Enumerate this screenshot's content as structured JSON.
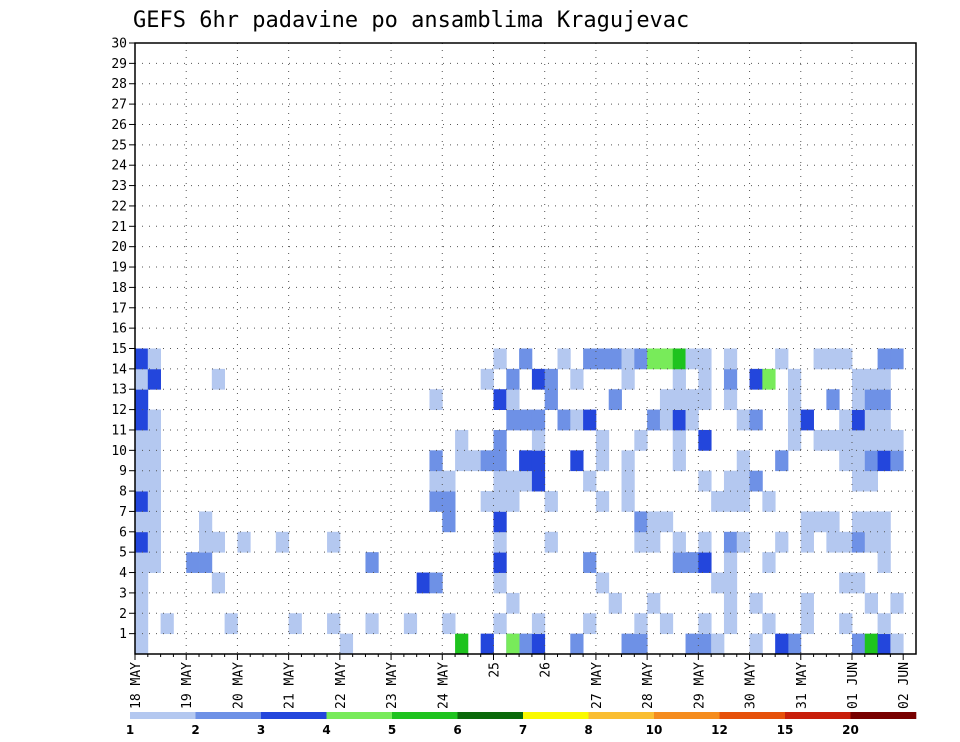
{
  "chart_data": {
    "type": "heatmap",
    "title": "GEFS 6hr padavine po ansamblima Kragujevac",
    "xlabel": "",
    "ylabel": "",
    "x_tick_labels": [
      "18 MAY",
      "19 MAY",
      "20 MAY",
      "21 MAY",
      "22 MAY",
      "23 MAY",
      "24 MAY",
      "25",
      "26",
      "27 MAY",
      "28 MAY",
      "29 MAY",
      "30 MAY",
      "31 MAY",
      "01 JUN",
      "02 JUN"
    ],
    "y_tick_labels": [
      "1",
      "2",
      "3",
      "4",
      "5",
      "6",
      "7",
      "8",
      "9",
      "10",
      "11",
      "12",
      "13",
      "14",
      "15",
      "16",
      "17",
      "18",
      "19",
      "20",
      "21",
      "22",
      "23",
      "24",
      "25",
      "26",
      "27",
      "28",
      "29",
      "30"
    ],
    "ylim": [
      0,
      30
    ],
    "time_steps": 61,
    "steps_per_day": 4,
    "grid": true,
    "colorbar": {
      "labels": [
        "1",
        "2",
        "3",
        "4",
        "5",
        "6",
        "7",
        "8",
        "10",
        "12",
        "15",
        "20"
      ],
      "colors": [
        "#b4c8f0",
        "#6e91e6",
        "#2346dc",
        "#78eb5a",
        "#1ec31e",
        "#0a690a",
        "#fafa00",
        "#fabe32",
        "#f58c1e",
        "#e6500a",
        "#c81e0a",
        "#780000"
      ]
    },
    "cells": [
      [
        1,
        0,
        1
      ],
      [
        1,
        16,
        1
      ],
      [
        1,
        29,
        2
      ],
      [
        1,
        30,
        2
      ],
      [
        1,
        31,
        3
      ],
      [
        1,
        27,
        3
      ],
      [
        1,
        29,
        4
      ],
      [
        1,
        25,
        5
      ],
      [
        1,
        38,
        2
      ],
      [
        1,
        39,
        2
      ],
      [
        1,
        34,
        2
      ],
      [
        1,
        56,
        2
      ],
      [
        1,
        57,
        5
      ],
      [
        1,
        58,
        3
      ],
      [
        1,
        51,
        2
      ],
      [
        1,
        50,
        3
      ],
      [
        1,
        43,
        2
      ],
      [
        1,
        44,
        2
      ],
      [
        1,
        45,
        1
      ],
      [
        1,
        48,
        1
      ],
      [
        1,
        59,
        1
      ],
      [
        2,
        0,
        1
      ],
      [
        2,
        2,
        1
      ],
      [
        2,
        7,
        1
      ],
      [
        2,
        12,
        1
      ],
      [
        2,
        15,
        1
      ],
      [
        2,
        18,
        1
      ],
      [
        2,
        21,
        1
      ],
      [
        2,
        24,
        1
      ],
      [
        2,
        28,
        1
      ],
      [
        2,
        31,
        1
      ],
      [
        2,
        35,
        1
      ],
      [
        2,
        39,
        1
      ],
      [
        2,
        41,
        1
      ],
      [
        2,
        44,
        1
      ],
      [
        2,
        46,
        1
      ],
      [
        2,
        49,
        1
      ],
      [
        2,
        52,
        1
      ],
      [
        2,
        55,
        1
      ],
      [
        2,
        58,
        1
      ],
      [
        3,
        0,
        1
      ],
      [
        3,
        29,
        1
      ],
      [
        3,
        37,
        1
      ],
      [
        3,
        40,
        1
      ],
      [
        3,
        46,
        1
      ],
      [
        3,
        48,
        1
      ],
      [
        3,
        52,
        1
      ],
      [
        3,
        57,
        1
      ],
      [
        3,
        59,
        1
      ],
      [
        4,
        0,
        1
      ],
      [
        4,
        6,
        1
      ],
      [
        4,
        22,
        3
      ],
      [
        4,
        23,
        2
      ],
      [
        4,
        28,
        1
      ],
      [
        4,
        36,
        1
      ],
      [
        4,
        45,
        1
      ],
      [
        4,
        46,
        1
      ],
      [
        4,
        55,
        1
      ],
      [
        4,
        56,
        1
      ],
      [
        5,
        0,
        1
      ],
      [
        5,
        1,
        1
      ],
      [
        5,
        4,
        2
      ],
      [
        5,
        5,
        2
      ],
      [
        5,
        18,
        2
      ],
      [
        5,
        28,
        3
      ],
      [
        5,
        35,
        2
      ],
      [
        5,
        42,
        2
      ],
      [
        5,
        43,
        2
      ],
      [
        5,
        44,
        3
      ],
      [
        5,
        46,
        1
      ],
      [
        5,
        49,
        1
      ],
      [
        5,
        58,
        1
      ],
      [
        6,
        0,
        3
      ],
      [
        6,
        1,
        1
      ],
      [
        6,
        5,
        1
      ],
      [
        6,
        6,
        1
      ],
      [
        6,
        8,
        1
      ],
      [
        6,
        11,
        1
      ],
      [
        6,
        15,
        1
      ],
      [
        6,
        28,
        1
      ],
      [
        6,
        32,
        1
      ],
      [
        6,
        39,
        1
      ],
      [
        6,
        40,
        1
      ],
      [
        6,
        42,
        1
      ],
      [
        6,
        44,
        1
      ],
      [
        6,
        46,
        2
      ],
      [
        6,
        47,
        1
      ],
      [
        6,
        50,
        1
      ],
      [
        6,
        52,
        1
      ],
      [
        6,
        54,
        1
      ],
      [
        6,
        55,
        1
      ],
      [
        6,
        56,
        2
      ],
      [
        6,
        57,
        1
      ],
      [
        6,
        58,
        1
      ],
      [
        7,
        0,
        1
      ],
      [
        7,
        1,
        1
      ],
      [
        7,
        5,
        1
      ],
      [
        7,
        24,
        2
      ],
      [
        7,
        28,
        3
      ],
      [
        7,
        39,
        2
      ],
      [
        7,
        40,
        1
      ],
      [
        7,
        41,
        1
      ],
      [
        7,
        52,
        1
      ],
      [
        7,
        53,
        1
      ],
      [
        7,
        54,
        1
      ],
      [
        7,
        56,
        1
      ],
      [
        7,
        57,
        1
      ],
      [
        7,
        58,
        1
      ],
      [
        8,
        0,
        3
      ],
      [
        8,
        1,
        1
      ],
      [
        8,
        23,
        2
      ],
      [
        8,
        24,
        2
      ],
      [
        8,
        27,
        1
      ],
      [
        8,
        28,
        1
      ],
      [
        8,
        29,
        1
      ],
      [
        8,
        32,
        1
      ],
      [
        8,
        36,
        1
      ],
      [
        8,
        38,
        1
      ],
      [
        8,
        45,
        1
      ],
      [
        8,
        46,
        1
      ],
      [
        8,
        47,
        1
      ],
      [
        8,
        49,
        1
      ],
      [
        9,
        0,
        1
      ],
      [
        9,
        1,
        1
      ],
      [
        9,
        23,
        1
      ],
      [
        9,
        24,
        1
      ],
      [
        9,
        28,
        1
      ],
      [
        9,
        29,
        1
      ],
      [
        9,
        30,
        1
      ],
      [
        9,
        31,
        3
      ],
      [
        9,
        35,
        1
      ],
      [
        9,
        38,
        1
      ],
      [
        9,
        44,
        1
      ],
      [
        9,
        46,
        1
      ],
      [
        9,
        47,
        1
      ],
      [
        9,
        48,
        2
      ],
      [
        9,
        56,
        1
      ],
      [
        9,
        57,
        1
      ],
      [
        10,
        0,
        1
      ],
      [
        10,
        1,
        1
      ],
      [
        10,
        23,
        2
      ],
      [
        10,
        25,
        1
      ],
      [
        10,
        26,
        1
      ],
      [
        10,
        27,
        2
      ],
      [
        10,
        28,
        2
      ],
      [
        10,
        30,
        3
      ],
      [
        10,
        31,
        3
      ],
      [
        10,
        34,
        3
      ],
      [
        10,
        36,
        1
      ],
      [
        10,
        38,
        1
      ],
      [
        10,
        42,
        1
      ],
      [
        10,
        47,
        1
      ],
      [
        10,
        50,
        2
      ],
      [
        10,
        55,
        1
      ],
      [
        10,
        56,
        1
      ],
      [
        10,
        57,
        2
      ],
      [
        10,
        58,
        3
      ],
      [
        10,
        59,
        2
      ],
      [
        11,
        0,
        1
      ],
      [
        11,
        1,
        1
      ],
      [
        11,
        25,
        1
      ],
      [
        11,
        28,
        2
      ],
      [
        11,
        31,
        1
      ],
      [
        11,
        36,
        1
      ],
      [
        11,
        39,
        1
      ],
      [
        11,
        42,
        1
      ],
      [
        11,
        44,
        3
      ],
      [
        11,
        51,
        1
      ],
      [
        11,
        53,
        1
      ],
      [
        11,
        54,
        1
      ],
      [
        11,
        55,
        1
      ],
      [
        11,
        56,
        1
      ],
      [
        11,
        57,
        1
      ],
      [
        11,
        58,
        1
      ],
      [
        11,
        59,
        1
      ],
      [
        12,
        0,
        3
      ],
      [
        12,
        1,
        1
      ],
      [
        12,
        29,
        2
      ],
      [
        12,
        30,
        2
      ],
      [
        12,
        31,
        2
      ],
      [
        12,
        33,
        2
      ],
      [
        12,
        34,
        1
      ],
      [
        12,
        35,
        3
      ],
      [
        12,
        40,
        2
      ],
      [
        12,
        41,
        1
      ],
      [
        12,
        42,
        3
      ],
      [
        12,
        43,
        1
      ],
      [
        12,
        47,
        1
      ],
      [
        12,
        48,
        2
      ],
      [
        12,
        51,
        1
      ],
      [
        12,
        52,
        3
      ],
      [
        12,
        55,
        1
      ],
      [
        12,
        56,
        3
      ],
      [
        12,
        57,
        1
      ],
      [
        12,
        58,
        1
      ],
      [
        13,
        0,
        3
      ],
      [
        13,
        23,
        1
      ],
      [
        13,
        28,
        3
      ],
      [
        13,
        29,
        1
      ],
      [
        13,
        32,
        2
      ],
      [
        13,
        37,
        2
      ],
      [
        13,
        41,
        1
      ],
      [
        13,
        42,
        1
      ],
      [
        13,
        43,
        1
      ],
      [
        13,
        44,
        1
      ],
      [
        13,
        46,
        1
      ],
      [
        13,
        51,
        1
      ],
      [
        13,
        54,
        2
      ],
      [
        13,
        56,
        1
      ],
      [
        13,
        57,
        2
      ],
      [
        13,
        58,
        2
      ],
      [
        14,
        0,
        1
      ],
      [
        14,
        1,
        3
      ],
      [
        14,
        6,
        1
      ],
      [
        14,
        27,
        1
      ],
      [
        14,
        29,
        2
      ],
      [
        14,
        31,
        3
      ],
      [
        14,
        32,
        2
      ],
      [
        14,
        34,
        1
      ],
      [
        14,
        38,
        1
      ],
      [
        14,
        42,
        1
      ],
      [
        14,
        44,
        1
      ],
      [
        14,
        46,
        2
      ],
      [
        14,
        48,
        3
      ],
      [
        14,
        49,
        4
      ],
      [
        14,
        51,
        1
      ],
      [
        14,
        56,
        1
      ],
      [
        14,
        57,
        1
      ],
      [
        14,
        58,
        1
      ],
      [
        15,
        0,
        3
      ],
      [
        15,
        1,
        1
      ],
      [
        15,
        28,
        1
      ],
      [
        15,
        30,
        2
      ],
      [
        15,
        33,
        1
      ],
      [
        15,
        35,
        2
      ],
      [
        15,
        36,
        2
      ],
      [
        15,
        37,
        2
      ],
      [
        15,
        38,
        1
      ],
      [
        15,
        39,
        2
      ],
      [
        15,
        40,
        4
      ],
      [
        15,
        41,
        4
      ],
      [
        15,
        42,
        5
      ],
      [
        15,
        43,
        1
      ],
      [
        15,
        44,
        1
      ],
      [
        15,
        46,
        1
      ],
      [
        15,
        50,
        1
      ],
      [
        15,
        53,
        1
      ],
      [
        15,
        54,
        1
      ],
      [
        15,
        55,
        1
      ],
      [
        15,
        58,
        2
      ],
      [
        15,
        59,
        2
      ]
    ]
  }
}
